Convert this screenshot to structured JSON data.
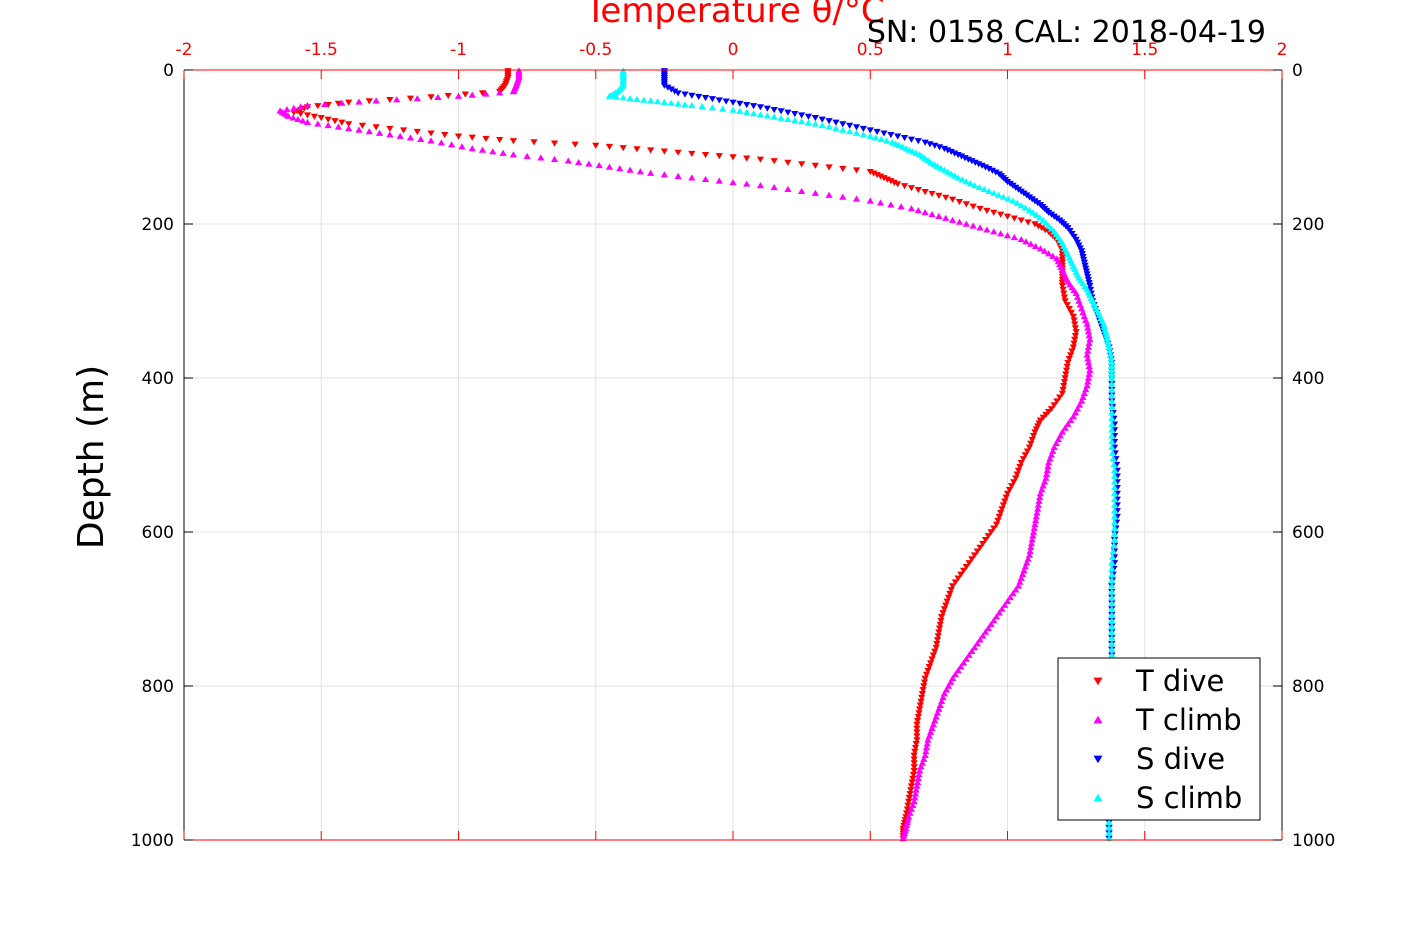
{
  "chart_data": {
    "type": "scatter",
    "title_top": "Temperature θ/°C",
    "title_right": "SN: 0158  CAL: 2018-04-19",
    "ylabel": "Depth (m)",
    "xlim": [
      -2,
      2
    ],
    "ylim": [
      0,
      1000
    ],
    "y_reversed": true,
    "grid": true,
    "x_ticks": [
      "-2",
      "-1.5",
      "-1",
      "-0.5",
      "0",
      "0.5",
      "1",
      "1.5",
      "2"
    ],
    "x_tick_values": [
      -2,
      -1.5,
      -1,
      -0.5,
      0,
      0.5,
      1,
      1.5,
      2
    ],
    "y_ticks": [
      "0",
      "200",
      "400",
      "600",
      "800",
      "1000"
    ],
    "y_tick_values": [
      0,
      200,
      400,
      600,
      800,
      1000
    ],
    "legend_position": "bottom-right",
    "series": [
      {
        "name": "T dive",
        "color": "#ff0000",
        "marker": "triangle-down",
        "points": [
          [
            -0.82,
            1
          ],
          [
            -0.82,
            10
          ],
          [
            -0.83,
            20
          ],
          [
            -0.85,
            28
          ],
          [
            -1.1,
            35
          ],
          [
            -1.4,
            42
          ],
          [
            -1.55,
            48
          ],
          [
            -1.6,
            55
          ],
          [
            -1.5,
            62
          ],
          [
            -1.4,
            70
          ],
          [
            -1.2,
            78
          ],
          [
            -1.0,
            86
          ],
          [
            -0.8,
            92
          ],
          [
            -0.5,
            98
          ],
          [
            -0.3,
            104
          ],
          [
            -0.1,
            110
          ],
          [
            0.1,
            116
          ],
          [
            0.3,
            124
          ],
          [
            0.5,
            132
          ],
          [
            0.55,
            140
          ],
          [
            0.6,
            148
          ],
          [
            0.7,
            158
          ],
          [
            0.8,
            168
          ],
          [
            0.9,
            180
          ],
          [
            1.0,
            190
          ],
          [
            1.1,
            200
          ],
          [
            1.15,
            210
          ],
          [
            1.18,
            220
          ],
          [
            1.2,
            235
          ],
          [
            1.2,
            250
          ],
          [
            1.2,
            265
          ],
          [
            1.2,
            280
          ],
          [
            1.21,
            300
          ],
          [
            1.24,
            320
          ],
          [
            1.25,
            340
          ],
          [
            1.24,
            360
          ],
          [
            1.22,
            380
          ],
          [
            1.21,
            400
          ],
          [
            1.2,
            420
          ],
          [
            1.16,
            440
          ],
          [
            1.12,
            455
          ],
          [
            1.1,
            470
          ],
          [
            1.08,
            490
          ],
          [
            1.05,
            510
          ],
          [
            1.03,
            530
          ],
          [
            1.0,
            550
          ],
          [
            0.98,
            570
          ],
          [
            0.96,
            590
          ],
          [
            0.92,
            610
          ],
          [
            0.88,
            630
          ],
          [
            0.84,
            650
          ],
          [
            0.8,
            670
          ],
          [
            0.78,
            690
          ],
          [
            0.76,
            710
          ],
          [
            0.75,
            730
          ],
          [
            0.74,
            750
          ],
          [
            0.72,
            770
          ],
          [
            0.7,
            790
          ],
          [
            0.69,
            810
          ],
          [
            0.68,
            830
          ],
          [
            0.67,
            850
          ],
          [
            0.67,
            870
          ],
          [
            0.66,
            890
          ],
          [
            0.66,
            910
          ],
          [
            0.65,
            930
          ],
          [
            0.64,
            950
          ],
          [
            0.63,
            970
          ],
          [
            0.62,
            985
          ],
          [
            0.62,
            998
          ]
        ]
      },
      {
        "name": "T climb",
        "color": "#ff00ff",
        "marker": "triangle-up",
        "points": [
          [
            -0.78,
            1
          ],
          [
            -0.78,
            10
          ],
          [
            -0.79,
            20
          ],
          [
            -0.8,
            28
          ],
          [
            -1.0,
            34
          ],
          [
            -1.3,
            40
          ],
          [
            -1.55,
            46
          ],
          [
            -1.65,
            53
          ],
          [
            -1.62,
            60
          ],
          [
            -1.55,
            68
          ],
          [
            -1.4,
            76
          ],
          [
            -1.25,
            84
          ],
          [
            -1.1,
            92
          ],
          [
            -0.95,
            102
          ],
          [
            -0.8,
            110
          ],
          [
            -0.6,
            118
          ],
          [
            -0.45,
            126
          ],
          [
            -0.3,
            134
          ],
          [
            -0.1,
            142
          ],
          [
            0.1,
            150
          ],
          [
            0.3,
            160
          ],
          [
            0.5,
            170
          ],
          [
            0.65,
            180
          ],
          [
            0.75,
            190
          ],
          [
            0.85,
            200
          ],
          [
            0.95,
            210
          ],
          [
            1.05,
            220
          ],
          [
            1.12,
            232
          ],
          [
            1.18,
            245
          ],
          [
            1.2,
            260
          ],
          [
            1.22,
            275
          ],
          [
            1.25,
            290
          ],
          [
            1.27,
            310
          ],
          [
            1.29,
            330
          ],
          [
            1.3,
            350
          ],
          [
            1.29,
            370
          ],
          [
            1.3,
            390
          ],
          [
            1.29,
            410
          ],
          [
            1.27,
            430
          ],
          [
            1.24,
            450
          ],
          [
            1.2,
            470
          ],
          [
            1.17,
            490
          ],
          [
            1.15,
            510
          ],
          [
            1.14,
            530
          ],
          [
            1.12,
            550
          ],
          [
            1.11,
            570
          ],
          [
            1.1,
            590
          ],
          [
            1.09,
            610
          ],
          [
            1.08,
            630
          ],
          [
            1.06,
            650
          ],
          [
            1.04,
            670
          ],
          [
            1.0,
            690
          ],
          [
            0.96,
            710
          ],
          [
            0.92,
            730
          ],
          [
            0.88,
            750
          ],
          [
            0.84,
            770
          ],
          [
            0.8,
            790
          ],
          [
            0.77,
            810
          ],
          [
            0.75,
            830
          ],
          [
            0.73,
            850
          ],
          [
            0.71,
            870
          ],
          [
            0.7,
            890
          ],
          [
            0.68,
            910
          ],
          [
            0.67,
            930
          ],
          [
            0.66,
            950
          ],
          [
            0.64,
            970
          ],
          [
            0.63,
            985
          ],
          [
            0.62,
            998
          ]
        ]
      },
      {
        "name": "S dive",
        "color": "#0000ff",
        "marker": "triangle-down",
        "points": [
          [
            -0.25,
            1
          ],
          [
            -0.25,
            10
          ],
          [
            -0.25,
            20
          ],
          [
            -0.2,
            30
          ],
          [
            -0.1,
            36
          ],
          [
            0.0,
            42
          ],
          [
            0.1,
            48
          ],
          [
            0.2,
            55
          ],
          [
            0.3,
            62
          ],
          [
            0.4,
            70
          ],
          [
            0.5,
            78
          ],
          [
            0.6,
            86
          ],
          [
            0.7,
            94
          ],
          [
            0.77,
            102
          ],
          [
            0.82,
            110
          ],
          [
            0.87,
            118
          ],
          [
            0.92,
            126
          ],
          [
            0.97,
            135
          ],
          [
            1.0,
            145
          ],
          [
            1.04,
            155
          ],
          [
            1.08,
            165
          ],
          [
            1.12,
            175
          ],
          [
            1.15,
            185
          ],
          [
            1.19,
            195
          ],
          [
            1.22,
            205
          ],
          [
            1.25,
            220
          ],
          [
            1.27,
            235
          ],
          [
            1.28,
            250
          ],
          [
            1.29,
            265
          ],
          [
            1.3,
            280
          ],
          [
            1.31,
            300
          ],
          [
            1.33,
            320
          ],
          [
            1.35,
            340
          ],
          [
            1.37,
            360
          ],
          [
            1.38,
            380
          ],
          [
            1.38,
            400
          ],
          [
            1.38,
            430
          ],
          [
            1.39,
            460
          ],
          [
            1.39,
            490
          ],
          [
            1.4,
            520
          ],
          [
            1.4,
            550
          ],
          [
            1.4,
            580
          ],
          [
            1.39,
            610
          ],
          [
            1.39,
            640
          ],
          [
            1.38,
            670
          ],
          [
            1.38,
            700
          ],
          [
            1.38,
            730
          ],
          [
            1.38,
            760
          ],
          [
            1.38,
            790
          ],
          [
            1.37,
            820
          ],
          [
            1.37,
            850
          ],
          [
            1.37,
            880
          ],
          [
            1.37,
            910
          ],
          [
            1.37,
            940
          ],
          [
            1.37,
            970
          ],
          [
            1.37,
            998
          ]
        ]
      },
      {
        "name": "S climb",
        "color": "#00ffff",
        "marker": "triangle-up",
        "points": [
          [
            -0.4,
            1
          ],
          [
            -0.4,
            10
          ],
          [
            -0.4,
            20
          ],
          [
            -0.42,
            28
          ],
          [
            -0.45,
            34
          ],
          [
            -0.35,
            38
          ],
          [
            -0.25,
            42
          ],
          [
            -0.15,
            46
          ],
          [
            0.0,
            52
          ],
          [
            0.1,
            58
          ],
          [
            0.2,
            64
          ],
          [
            0.3,
            70
          ],
          [
            0.4,
            78
          ],
          [
            0.5,
            86
          ],
          [
            0.58,
            94
          ],
          [
            0.63,
            102
          ],
          [
            0.68,
            110
          ],
          [
            0.72,
            120
          ],
          [
            0.77,
            130
          ],
          [
            0.82,
            140
          ],
          [
            0.88,
            150
          ],
          [
            0.95,
            160
          ],
          [
            1.02,
            170
          ],
          [
            1.08,
            182
          ],
          [
            1.13,
            195
          ],
          [
            1.17,
            210
          ],
          [
            1.2,
            225
          ],
          [
            1.22,
            240
          ],
          [
            1.24,
            255
          ],
          [
            1.26,
            270
          ],
          [
            1.29,
            285
          ],
          [
            1.31,
            300
          ],
          [
            1.33,
            315
          ],
          [
            1.35,
            330
          ],
          [
            1.36,
            345
          ],
          [
            1.37,
            360
          ],
          [
            1.38,
            380
          ],
          [
            1.38,
            400
          ],
          [
            1.38,
            430
          ],
          [
            1.38,
            460
          ],
          [
            1.38,
            490
          ],
          [
            1.39,
            520
          ],
          [
            1.39,
            550
          ],
          [
            1.39,
            580
          ],
          [
            1.39,
            610
          ],
          [
            1.38,
            640
          ],
          [
            1.38,
            670
          ],
          [
            1.38,
            700
          ],
          [
            1.38,
            730
          ],
          [
            1.38,
            760
          ],
          [
            1.37,
            790
          ],
          [
            1.37,
            820
          ],
          [
            1.37,
            850
          ],
          [
            1.37,
            880
          ],
          [
            1.37,
            910
          ],
          [
            1.37,
            940
          ],
          [
            1.37,
            970
          ],
          [
            1.37,
            998
          ]
        ]
      }
    ]
  }
}
